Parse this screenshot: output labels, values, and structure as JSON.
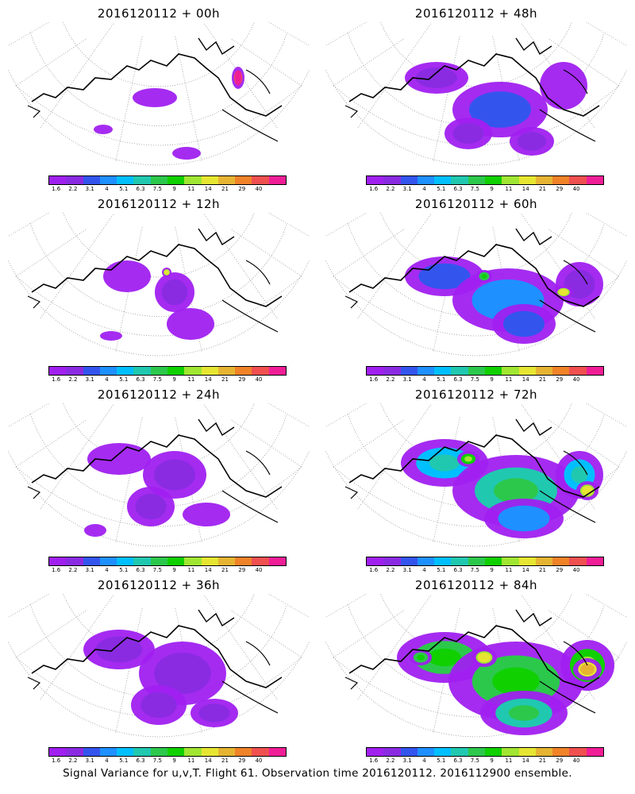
{
  "panels": [
    {
      "title": "2016120112 + 00h"
    },
    {
      "title": "2016120112 + 48h"
    },
    {
      "title": "2016120112 + 12h"
    },
    {
      "title": "2016120112 + 60h"
    },
    {
      "title": "2016120112 + 24h"
    },
    {
      "title": "2016120112 + 72h"
    },
    {
      "title": "2016120112 + 36h"
    },
    {
      "title": "2016120112 + 84h"
    }
  ],
  "colorbar": {
    "labels": [
      "1.6",
      "2.2",
      "3.1",
      "4",
      "5.1",
      "6.3",
      "7.5",
      "9",
      "11",
      "14",
      "21",
      "29",
      "40"
    ],
    "colors": [
      "#a020f0",
      "#8a2be2",
      "#3355ee",
      "#1e90ff",
      "#00bfff",
      "#20c8b0",
      "#2cc84c",
      "#10d000",
      "#a0e632",
      "#e6e632",
      "#e6b432",
      "#f08228",
      "#f05050",
      "#f01e96"
    ]
  },
  "footer": "Signal Variance for u,v,T. Flight 61. Observation time 2016120112. 2016112900 ensemble."
}
